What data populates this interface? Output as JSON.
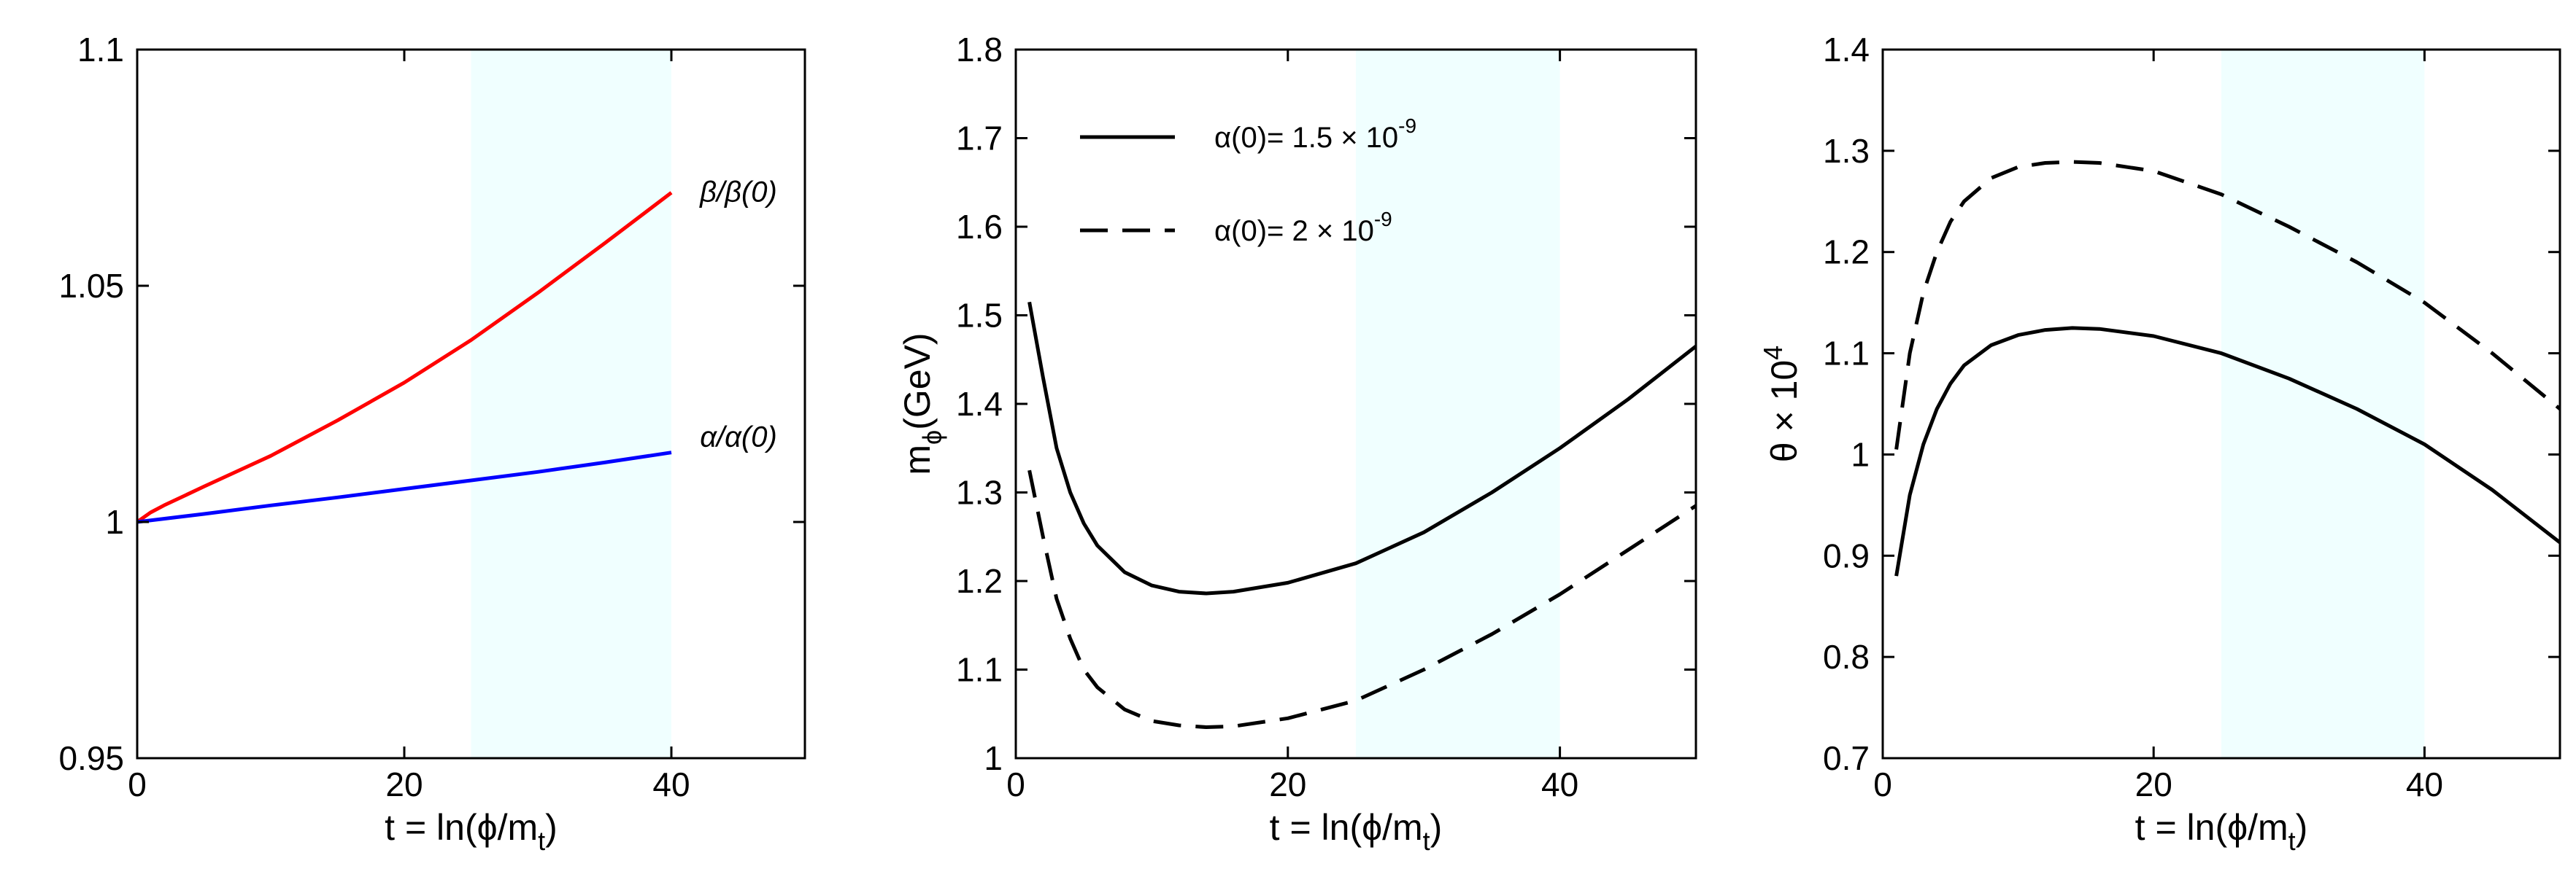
{
  "chart_data": [
    {
      "type": "line",
      "xlabel": "t = ln(ϕ/m",
      "xlabel_sub": "t",
      "xlabel_close": ")",
      "ylabel": "",
      "xlim": [
        0,
        50
      ],
      "ylim": [
        0.95,
        1.1
      ],
      "xticks": [
        0,
        20,
        40
      ],
      "xtick_labels": [
        "0",
        "20",
        "40"
      ],
      "yticks": [
        0.95,
        1,
        1.05,
        1.1
      ],
      "ytick_labels": [
        "0.95",
        "1",
        "1.05",
        "1.1"
      ],
      "shaded_region": [
        25,
        40
      ],
      "shade_color": "#f0ffff",
      "series": [
        {
          "name": "β/β(0)",
          "color": "#ff0000",
          "dash": "solid",
          "x": [
            0,
            1,
            2,
            5,
            10,
            15,
            20,
            25,
            30,
            35,
            40
          ],
          "y": [
            1.0,
            1.002,
            1.0035,
            1.0075,
            1.014,
            1.0215,
            1.0295,
            1.0385,
            1.0485,
            1.059,
            1.0697
          ]
        },
        {
          "name": "α/α(0)",
          "color": "#0000ff",
          "dash": "solid",
          "x": [
            0,
            5,
            10,
            15,
            20,
            25,
            30,
            35,
            40
          ],
          "y": [
            1.0,
            1.0017,
            1.0035,
            1.0052,
            1.007,
            1.0088,
            1.0106,
            1.0126,
            1.0147
          ]
        }
      ]
    },
    {
      "type": "line",
      "xlabel": "t = ln(ϕ/m",
      "xlabel_sub": "t",
      "xlabel_close": ")",
      "ylabel": "m",
      "ylabel_sub": "ϕ",
      "ylabel_unit": "(GeV)",
      "xlim": [
        0,
        50
      ],
      "ylim": [
        1,
        1.8
      ],
      "xticks": [
        0,
        20,
        40
      ],
      "xtick_labels": [
        "0",
        "20",
        "40"
      ],
      "yticks": [
        1,
        1.1,
        1.2,
        1.3,
        1.4,
        1.5,
        1.6,
        1.7,
        1.8
      ],
      "ytick_labels": [
        "1",
        "1.1",
        "1.2",
        "1.3",
        "1.4",
        "1.5",
        "1.6",
        "1.7",
        "1.8"
      ],
      "shaded_region": [
        25,
        40
      ],
      "shade_color": "#f0ffff",
      "legend_placement": "top-left",
      "series": [
        {
          "name": "α(0)= 1.5 × 10",
          "name_sup": "-9",
          "color": "#000000",
          "dash": "solid",
          "x": [
            1,
            2,
            3,
            4,
            5,
            6,
            8,
            10,
            12,
            14,
            16,
            20,
            25,
            30,
            35,
            40,
            45,
            50
          ],
          "y": [
            1.515,
            1.43,
            1.35,
            1.3,
            1.265,
            1.24,
            1.21,
            1.195,
            1.188,
            1.186,
            1.188,
            1.198,
            1.22,
            1.255,
            1.3,
            1.35,
            1.405,
            1.465
          ]
        },
        {
          "name": "α(0)= 2 × 10",
          "name_sup": "-9",
          "color": "#000000",
          "dash": "dashed",
          "x": [
            1,
            2,
            3,
            4,
            5,
            6,
            8,
            10,
            12,
            14,
            16,
            20,
            25,
            30,
            35,
            40,
            45,
            50
          ],
          "y": [
            1.325,
            1.25,
            1.18,
            1.135,
            1.1,
            1.08,
            1.055,
            1.042,
            1.037,
            1.035,
            1.036,
            1.045,
            1.065,
            1.1,
            1.14,
            1.185,
            1.235,
            1.285
          ]
        }
      ]
    },
    {
      "type": "line",
      "xlabel": "t = ln(ϕ/m",
      "xlabel_sub": "t",
      "xlabel_close": ")",
      "ylabel": "θ × 10",
      "ylabel_sup": "4",
      "xlim": [
        0,
        50
      ],
      "ylim": [
        0.7,
        1.4
      ],
      "xticks": [
        0,
        20,
        40
      ],
      "xtick_labels": [
        "0",
        "20",
        "40"
      ],
      "yticks": [
        0.7,
        0.8,
        0.9,
        1,
        1.1,
        1.2,
        1.3,
        1.4
      ],
      "ytick_labels": [
        "0.7",
        "0.8",
        "0.9",
        "1",
        "1.1",
        "1.2",
        "1.3",
        "1.4"
      ],
      "shaded_region": [
        25,
        40
      ],
      "shade_color": "#f0ffff",
      "series": [
        {
          "color": "#000000",
          "dash": "solid",
          "x": [
            1,
            2,
            3,
            4,
            5,
            6,
            8,
            10,
            12,
            14,
            16,
            20,
            25,
            30,
            35,
            40,
            45,
            50
          ],
          "y": [
            0.88,
            0.96,
            1.01,
            1.045,
            1.07,
            1.088,
            1.108,
            1.118,
            1.123,
            1.125,
            1.124,
            1.117,
            1.1,
            1.075,
            1.045,
            1.01,
            0.965,
            0.913
          ]
        },
        {
          "color": "#000000",
          "dash": "dashed",
          "x": [
            1,
            2,
            3,
            4,
            5,
            6,
            8,
            10,
            12,
            14,
            16,
            20,
            25,
            30,
            35,
            40,
            45,
            50
          ],
          "y": [
            1.005,
            1.1,
            1.16,
            1.2,
            1.23,
            1.25,
            1.273,
            1.284,
            1.288,
            1.289,
            1.288,
            1.28,
            1.257,
            1.225,
            1.19,
            1.15,
            1.1,
            1.045
          ]
        }
      ]
    }
  ]
}
